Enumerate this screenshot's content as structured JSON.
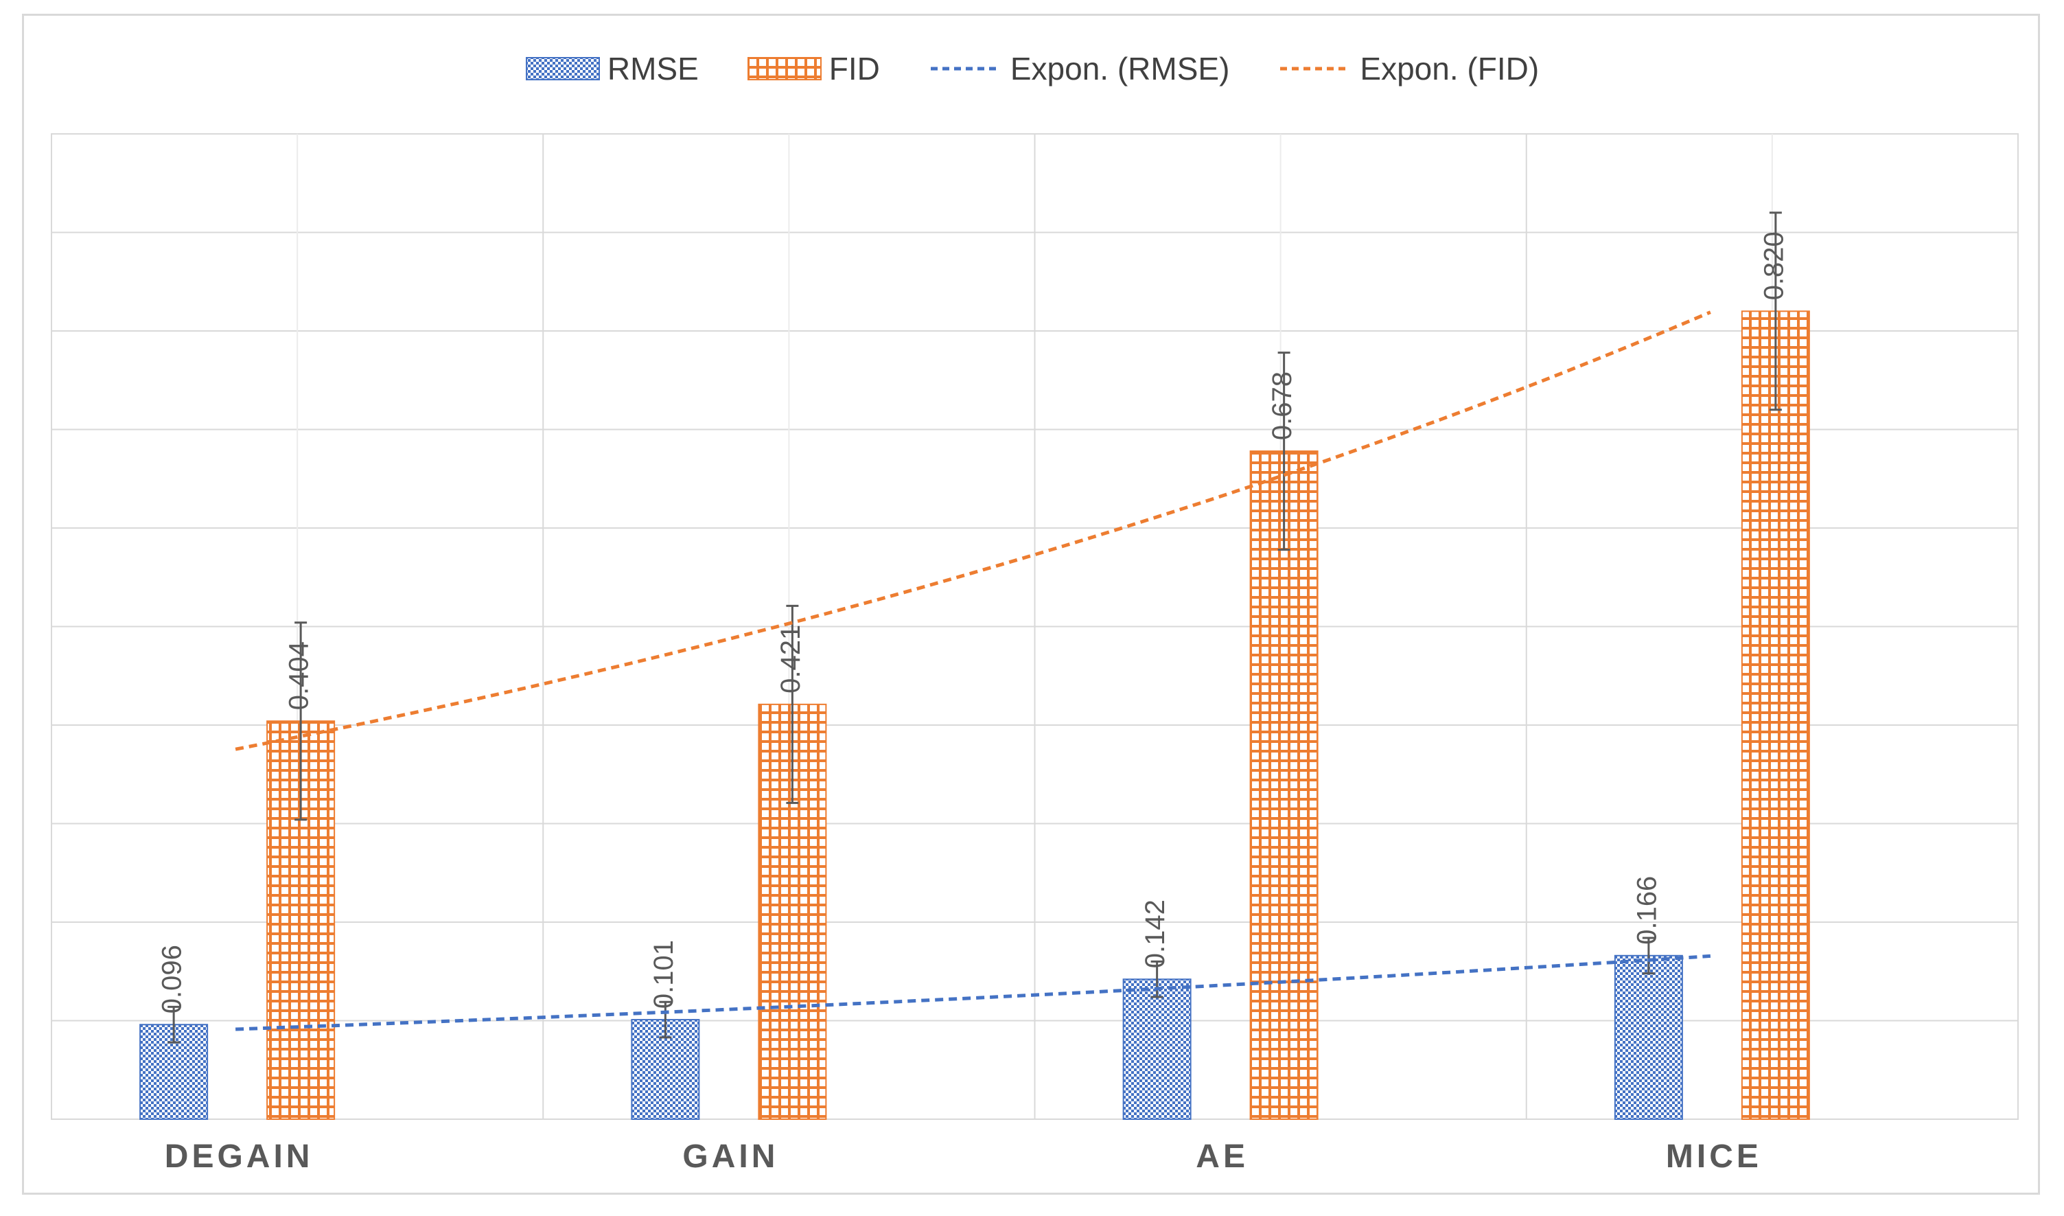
{
  "chart_data": {
    "type": "bar",
    "categories": [
      "DEGAIN",
      "GAIN",
      "AE",
      "MICE"
    ],
    "series": [
      {
        "name": "RMSE",
        "values": [
          0.096,
          0.101,
          0.142,
          0.166
        ],
        "error": [
          0.018,
          0.018,
          0.018,
          0.018
        ],
        "color": "#4472c4",
        "pattern": "dots"
      },
      {
        "name": "FID",
        "values": [
          0.404,
          0.421,
          0.678,
          0.82
        ],
        "error": [
          0.1,
          0.1,
          0.1,
          0.1
        ],
        "color": "#ed7d31",
        "pattern": "grid"
      }
    ],
    "trendlines": [
      {
        "name": "Expon. (RMSE)",
        "of": "RMSE",
        "type": "exponential",
        "color": "#4472c4"
      },
      {
        "name": "Expon. (FID)",
        "of": "FID",
        "type": "exponential",
        "color": "#ed7d31"
      }
    ],
    "data_labels": {
      "RMSE": [
        "0.096",
        "0.101",
        "0.142",
        "0.166"
      ],
      "FID": [
        "0.404",
        "0.421",
        "0.678",
        "0.820"
      ]
    },
    "ylim": [
      0,
      1.0
    ],
    "y_gridline_step": 0.1,
    "grid": true,
    "legend_position": "top",
    "title": "",
    "xlabel": "",
    "ylabel": ""
  }
}
